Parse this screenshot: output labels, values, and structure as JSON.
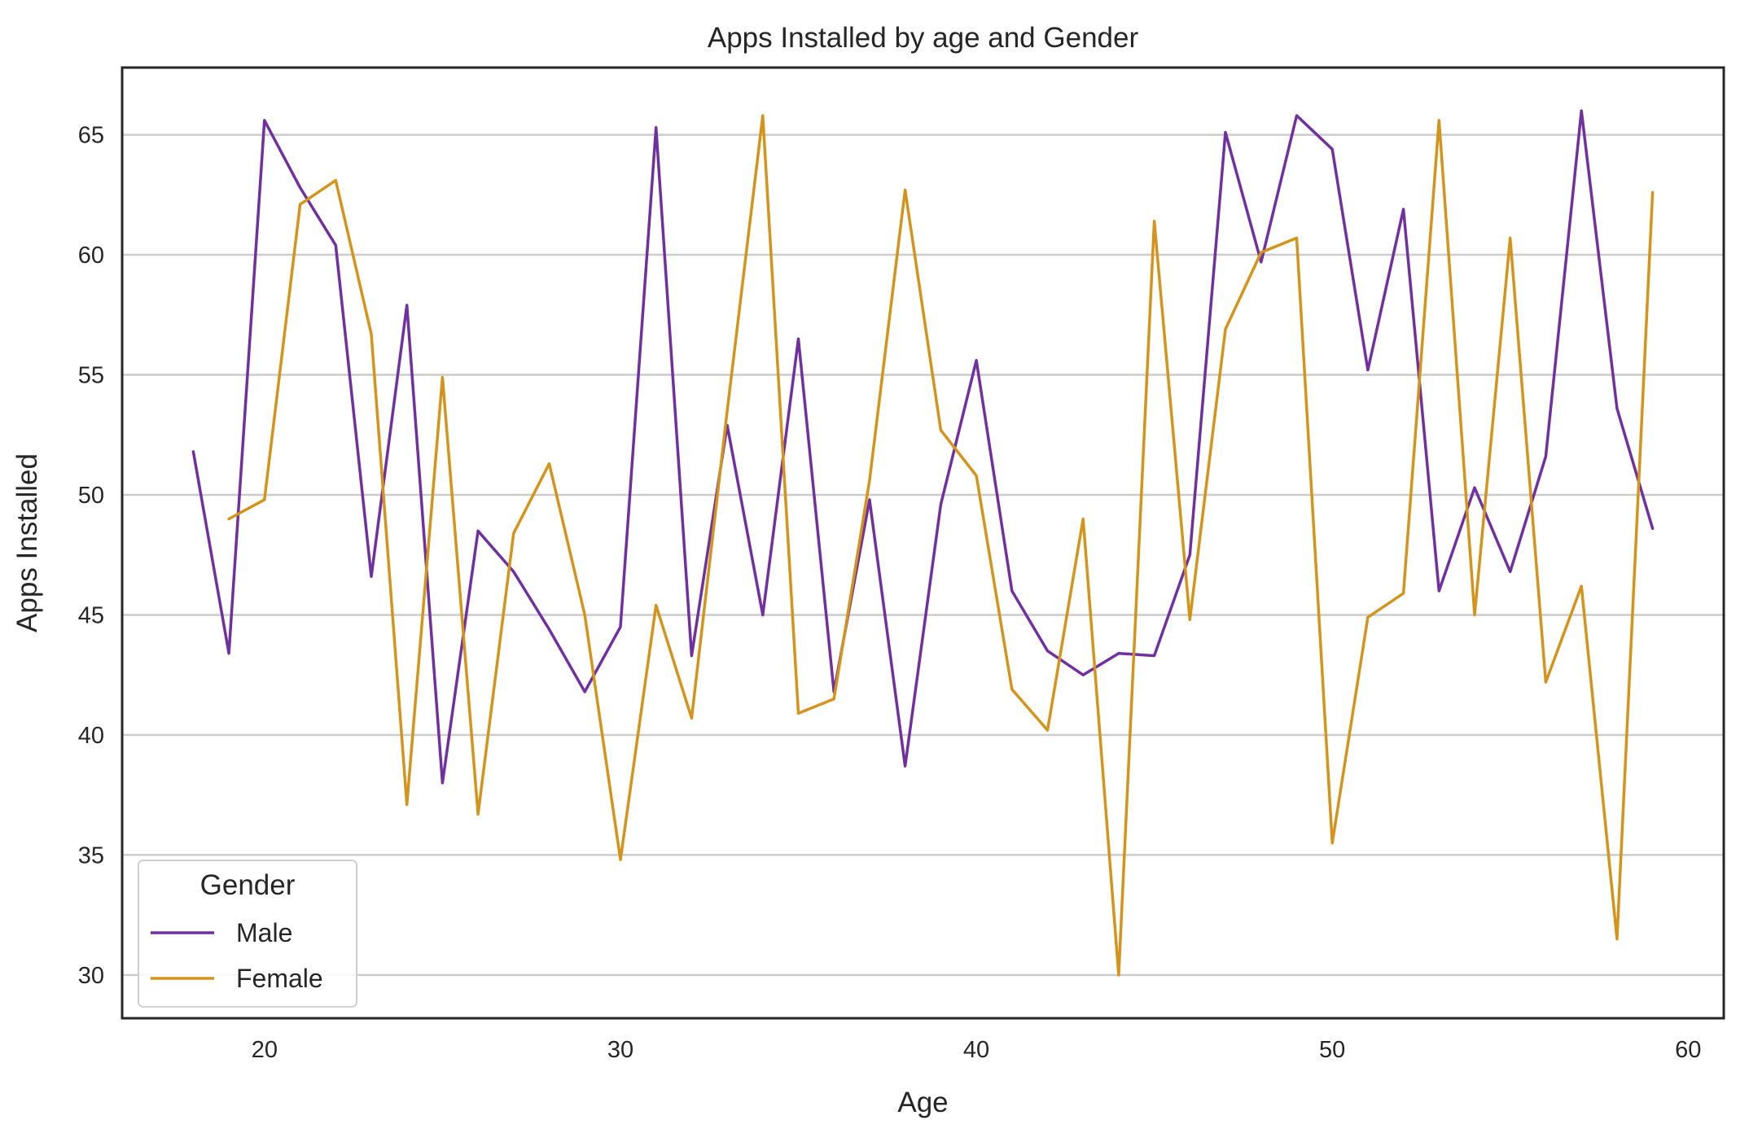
{
  "chart_data": {
    "type": "line",
    "title": "Apps Installed by age and Gender",
    "xlabel": "Age",
    "ylabel": "Apps Installed",
    "xlim": [
      16,
      61
    ],
    "ylim": [
      28.2,
      67.8
    ],
    "xticks": [
      20,
      30,
      40,
      50,
      60
    ],
    "yticks": [
      30,
      35,
      40,
      45,
      50,
      55,
      60,
      65
    ],
    "grid": "horizontal",
    "legend": {
      "title": "Gender",
      "placement": "lower-left"
    },
    "colors": {
      "Male": "#7030a0",
      "Female": "#d4941c"
    },
    "series": [
      {
        "name": "Male",
        "x": [
          18,
          19,
          20,
          21,
          22,
          23,
          24,
          25,
          26,
          27,
          28,
          29,
          30,
          31,
          32,
          33,
          34,
          35,
          36,
          37,
          38,
          39,
          40,
          41,
          42,
          43,
          44,
          45,
          46,
          47,
          48,
          49,
          50,
          51,
          52,
          53,
          54,
          55,
          56,
          57,
          58,
          59
        ],
        "values": [
          51.8,
          43.4,
          65.6,
          62.8,
          60.4,
          46.6,
          57.9,
          38.0,
          48.5,
          46.8,
          44.4,
          41.8,
          44.5,
          65.3,
          43.3,
          52.9,
          45.0,
          56.5,
          41.8,
          49.8,
          38.7,
          49.6,
          55.6,
          46.0,
          43.5,
          42.5,
          43.4,
          43.3,
          47.5,
          65.1,
          59.7,
          65.8,
          64.4,
          55.2,
          61.9,
          46.0,
          50.3,
          46.8,
          51.6,
          66.0,
          53.6,
          48.6
        ]
      },
      {
        "name": "Female",
        "x": [
          19,
          20,
          21,
          22,
          23,
          24,
          25,
          26,
          27,
          28,
          29,
          30,
          31,
          32,
          33,
          34,
          35,
          36,
          37,
          38,
          39,
          40,
          41,
          42,
          43,
          44,
          45,
          46,
          47,
          48,
          49,
          50,
          51,
          52,
          53,
          54,
          55,
          56,
          57,
          58,
          59
        ],
        "values": [
          49.0,
          49.8,
          62.1,
          63.1,
          56.7,
          37.1,
          54.9,
          36.7,
          48.4,
          51.3,
          45.0,
          34.8,
          45.4,
          40.7,
          53.5,
          65.8,
          40.9,
          41.5,
          50.6,
          62.7,
          52.7,
          50.8,
          41.9,
          40.2,
          49.0,
          30.0,
          61.4,
          44.8,
          56.9,
          60.1,
          60.7,
          35.5,
          44.9,
          45.9,
          65.6,
          45.0,
          60.7,
          42.2,
          46.2,
          31.5,
          62.6
        ]
      }
    ]
  }
}
